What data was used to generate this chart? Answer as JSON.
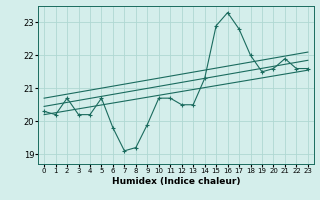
{
  "xlabel": "Humidex (Indice chaleur)",
  "bg_color": "#d4eeeb",
  "grid_color": "#afd8d3",
  "line_color": "#1a6b5e",
  "spine_color": "#1a6b5e",
  "xlim": [
    -0.5,
    23.5
  ],
  "ylim": [
    18.7,
    23.5
  ],
  "xticks": [
    0,
    1,
    2,
    3,
    4,
    5,
    6,
    7,
    8,
    9,
    10,
    11,
    12,
    13,
    14,
    15,
    16,
    17,
    18,
    19,
    20,
    21,
    22,
    23
  ],
  "yticks": [
    19,
    20,
    21,
    22,
    23
  ],
  "main_line": [
    [
      0,
      20.3
    ],
    [
      1,
      20.2
    ],
    [
      2,
      20.7
    ],
    [
      3,
      20.2
    ],
    [
      4,
      20.2
    ],
    [
      5,
      20.7
    ],
    [
      6,
      19.8
    ],
    [
      7,
      19.1
    ],
    [
      8,
      19.2
    ],
    [
      9,
      19.9
    ],
    [
      10,
      20.7
    ],
    [
      11,
      20.7
    ],
    [
      12,
      20.5
    ],
    [
      13,
      20.5
    ],
    [
      14,
      21.3
    ],
    [
      15,
      22.9
    ],
    [
      16,
      23.3
    ],
    [
      17,
      22.8
    ],
    [
      18,
      22.0
    ],
    [
      19,
      21.5
    ],
    [
      20,
      21.6
    ],
    [
      21,
      21.9
    ],
    [
      22,
      21.6
    ],
    [
      23,
      21.6
    ]
  ],
  "trend_lines": [
    [
      [
        0,
        20.2
      ],
      [
        23,
        21.55
      ]
    ],
    [
      [
        0,
        20.45
      ],
      [
        23,
        21.85
      ]
    ],
    [
      [
        0,
        20.7
      ],
      [
        23,
        22.1
      ]
    ]
  ],
  "xlabel_fontsize": 6.5,
  "tick_fontsize": 5.0,
  "ytick_fontsize": 6.0
}
